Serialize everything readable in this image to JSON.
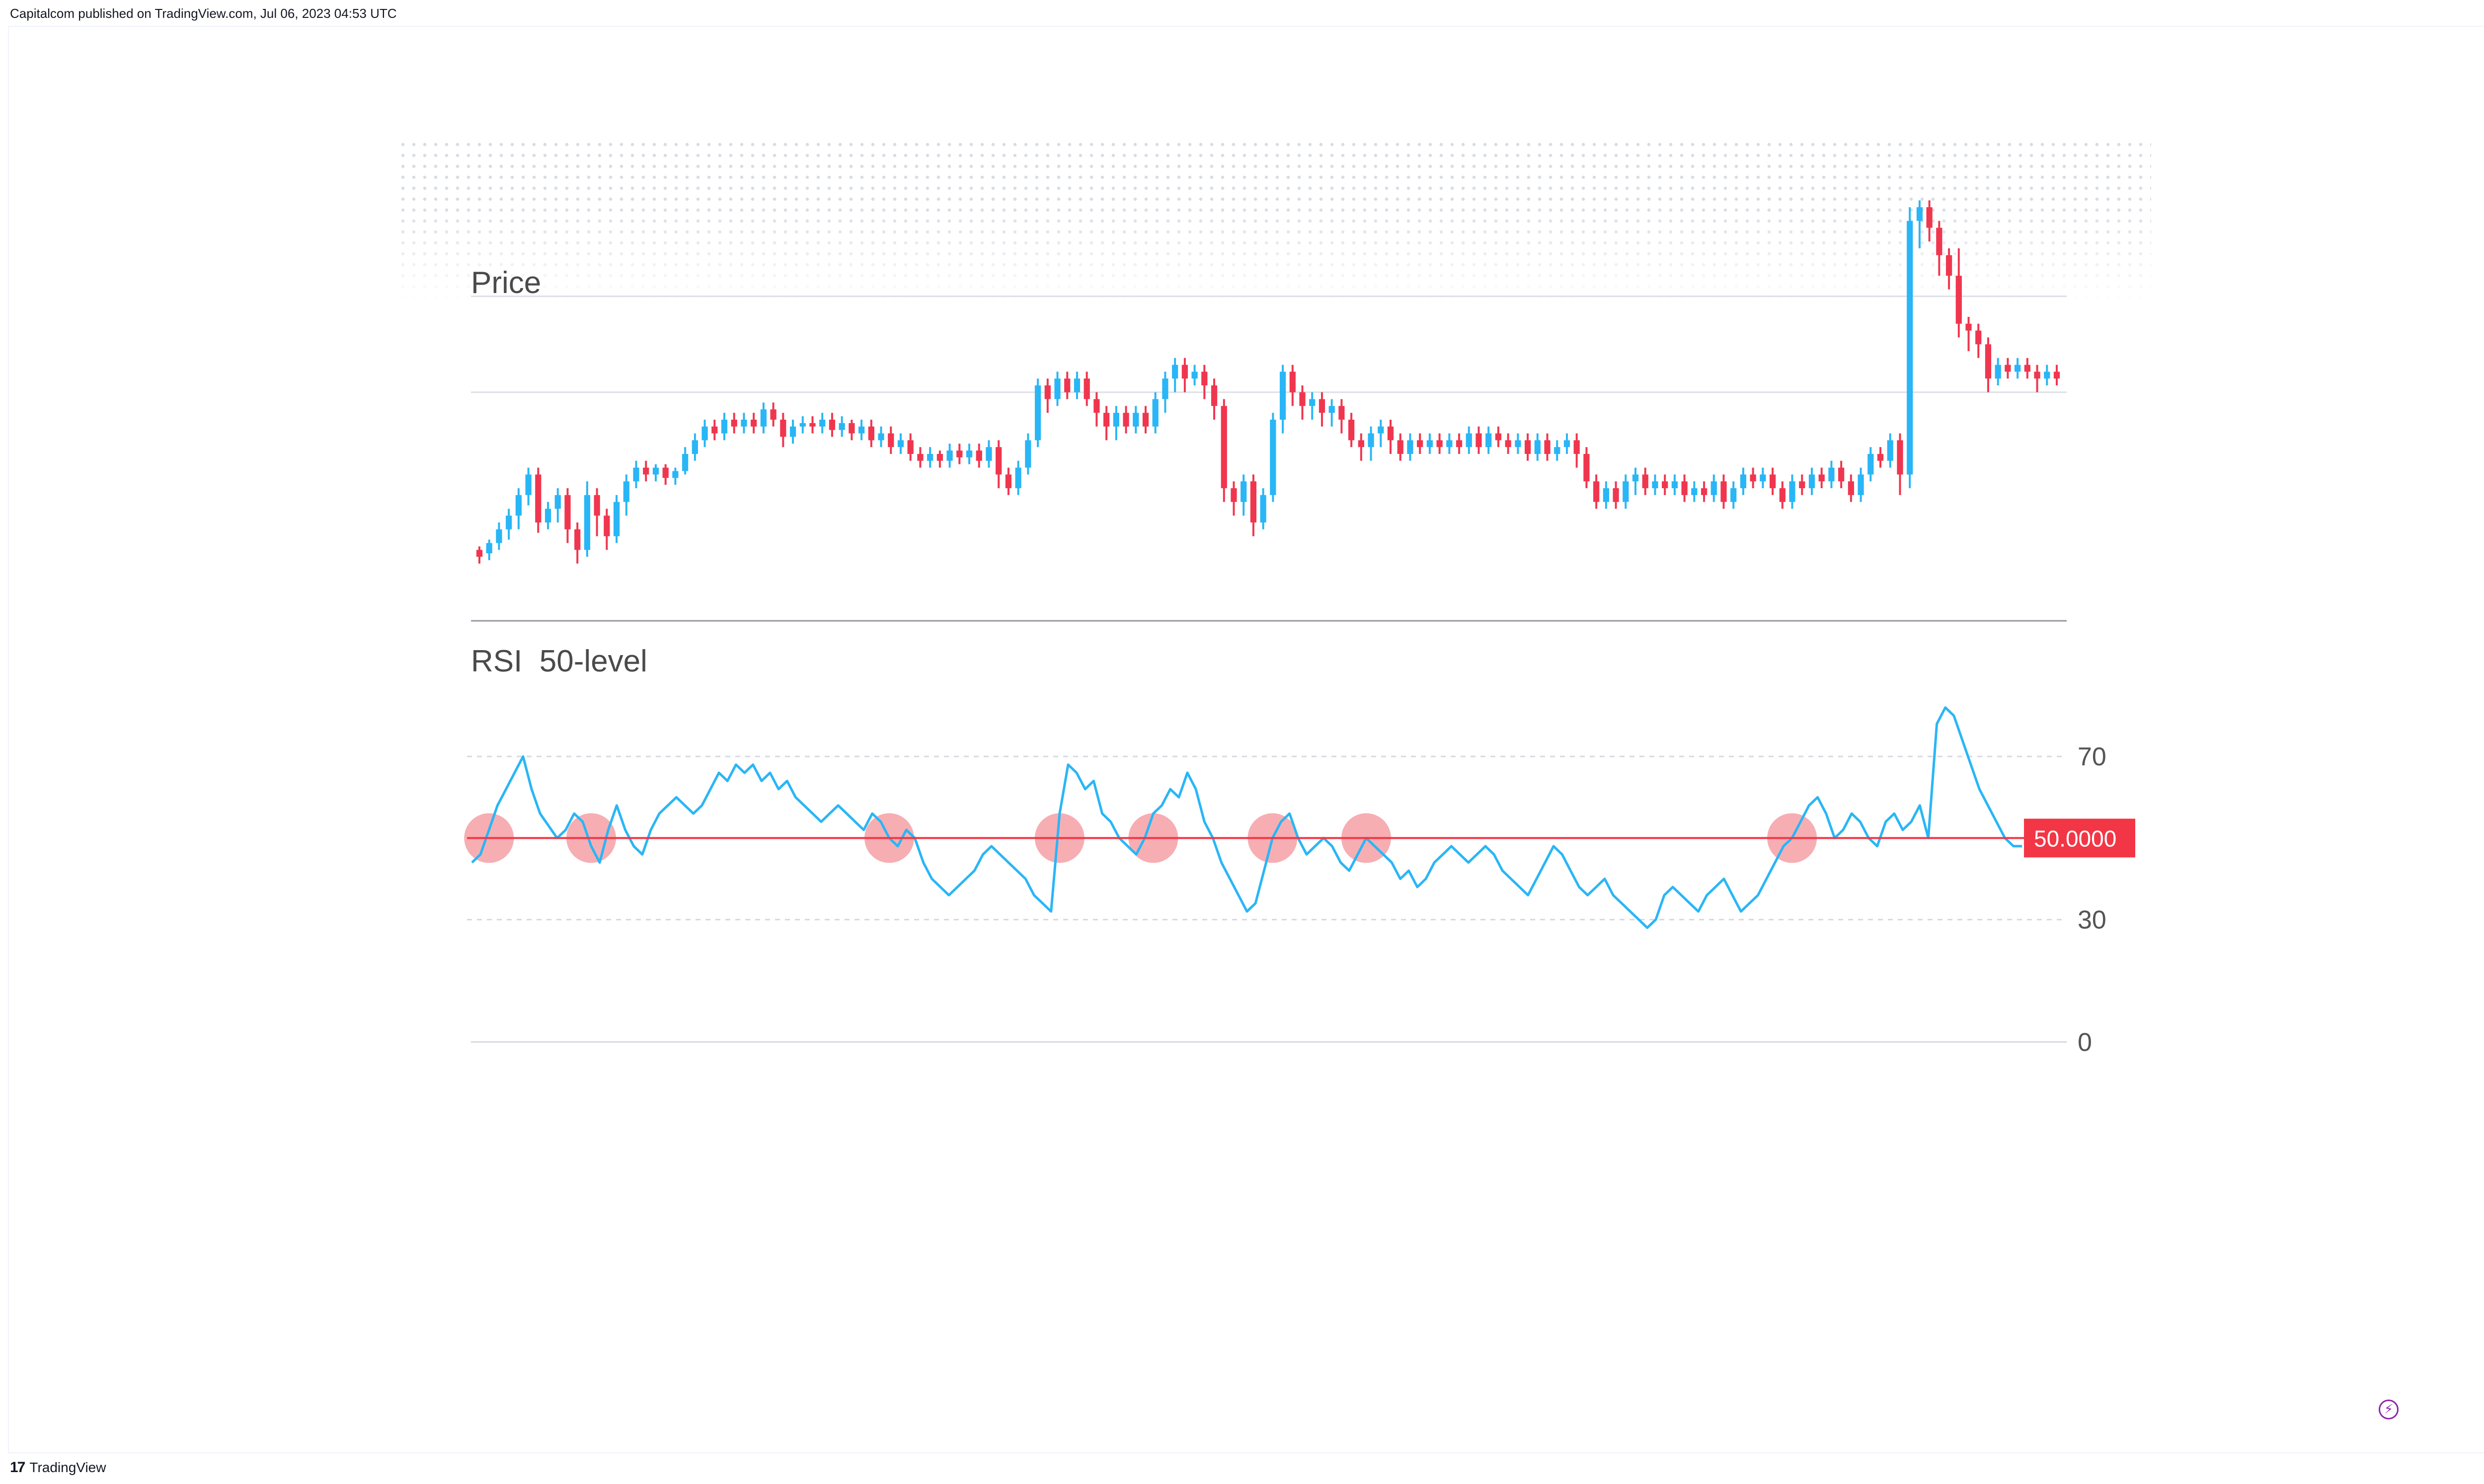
{
  "header": {
    "published": "Capitalcom published on TradingView.com, Jul 06, 2023 04:53 UTC"
  },
  "footer": {
    "brand_logo": "17",
    "brand_name": "TradingView",
    "bolt_glyph": "⚡"
  },
  "chart_data": [
    {
      "type": "candlestick",
      "title": "Price",
      "colors": {
        "up": "#29b6f6",
        "down": "#f0364f",
        "grid": "#dde0e6"
      },
      "ylim": [
        0,
        100
      ],
      "gridlines": [
        58,
        86
      ],
      "candles": [
        [
          12,
          10,
          13,
          8
        ],
        [
          11,
          14,
          15,
          9
        ],
        [
          14,
          18,
          20,
          12
        ],
        [
          18,
          22,
          24,
          15
        ],
        [
          22,
          28,
          30,
          18
        ],
        [
          28,
          34,
          36,
          25
        ],
        [
          34,
          20,
          36,
          17
        ],
        [
          20,
          24,
          26,
          18
        ],
        [
          24,
          28,
          30,
          20
        ],
        [
          28,
          18,
          30,
          14
        ],
        [
          18,
          12,
          20,
          8
        ],
        [
          12,
          28,
          32,
          10
        ],
        [
          28,
          22,
          30,
          16
        ],
        [
          22,
          16,
          24,
          12
        ],
        [
          16,
          26,
          28,
          14
        ],
        [
          26,
          32,
          34,
          22
        ],
        [
          32,
          36,
          38,
          30
        ],
        [
          36,
          34,
          38,
          32
        ],
        [
          34,
          36,
          37,
          32
        ],
        [
          36,
          33,
          37,
          31
        ],
        [
          33,
          35,
          36,
          31
        ],
        [
          35,
          40,
          42,
          34
        ],
        [
          40,
          44,
          46,
          38
        ],
        [
          44,
          48,
          50,
          42
        ],
        [
          48,
          46,
          50,
          44
        ],
        [
          46,
          50,
          52,
          44
        ],
        [
          50,
          48,
          52,
          46
        ],
        [
          48,
          50,
          52,
          46
        ],
        [
          50,
          48,
          52,
          46
        ],
        [
          48,
          53,
          55,
          46
        ],
        [
          53,
          50,
          55,
          48
        ],
        [
          50,
          45,
          52,
          42
        ],
        [
          45,
          48,
          50,
          43
        ],
        [
          48,
          49,
          51,
          46
        ],
        [
          49,
          48,
          51,
          46
        ],
        [
          48,
          50,
          52,
          46
        ],
        [
          50,
          47,
          52,
          45
        ],
        [
          47,
          49,
          51,
          45
        ],
        [
          49,
          46,
          50,
          44
        ],
        [
          46,
          48,
          50,
          44
        ],
        [
          48,
          44,
          50,
          42
        ],
        [
          44,
          46,
          48,
          42
        ],
        [
          46,
          42,
          48,
          40
        ],
        [
          42,
          44,
          46,
          40
        ],
        [
          44,
          40,
          46,
          38
        ],
        [
          40,
          38,
          42,
          36
        ],
        [
          38,
          40,
          42,
          36
        ],
        [
          40,
          38,
          41,
          36
        ],
        [
          38,
          41,
          43,
          36
        ],
        [
          41,
          39,
          43,
          37
        ],
        [
          39,
          41,
          43,
          37
        ],
        [
          41,
          38,
          43,
          36
        ],
        [
          38,
          42,
          44,
          36
        ],
        [
          42,
          34,
          44,
          30
        ],
        [
          34,
          30,
          36,
          28
        ],
        [
          30,
          36,
          38,
          28
        ],
        [
          36,
          44,
          46,
          34
        ],
        [
          44,
          60,
          62,
          42
        ],
        [
          60,
          56,
          62,
          52
        ],
        [
          56,
          62,
          64,
          54
        ],
        [
          62,
          58,
          64,
          56
        ],
        [
          58,
          62,
          64,
          56
        ],
        [
          62,
          56,
          64,
          54
        ],
        [
          56,
          52,
          58,
          48
        ],
        [
          52,
          48,
          54,
          44
        ],
        [
          48,
          52,
          54,
          44
        ],
        [
          52,
          48,
          54,
          46
        ],
        [
          48,
          52,
          54,
          46
        ],
        [
          52,
          48,
          54,
          46
        ],
        [
          48,
          56,
          58,
          46
        ],
        [
          56,
          62,
          64,
          52
        ],
        [
          62,
          66,
          68,
          58
        ],
        [
          66,
          62,
          68,
          58
        ],
        [
          62,
          64,
          66,
          60
        ],
        [
          64,
          60,
          66,
          56
        ],
        [
          60,
          54,
          62,
          50
        ],
        [
          54,
          30,
          56,
          26
        ],
        [
          30,
          26,
          32,
          22
        ],
        [
          26,
          32,
          34,
          22
        ],
        [
          32,
          20,
          34,
          16
        ],
        [
          20,
          28,
          30,
          18
        ],
        [
          28,
          50,
          52,
          26
        ],
        [
          50,
          64,
          66,
          46
        ],
        [
          64,
          58,
          66,
          54
        ],
        [
          58,
          54,
          60,
          50
        ],
        [
          54,
          56,
          58,
          50
        ],
        [
          56,
          52,
          58,
          48
        ],
        [
          52,
          54,
          56,
          48
        ],
        [
          54,
          50,
          56,
          46
        ],
        [
          50,
          44,
          52,
          42
        ],
        [
          44,
          42,
          46,
          38
        ],
        [
          42,
          46,
          48,
          38
        ],
        [
          46,
          48,
          50,
          42
        ],
        [
          48,
          44,
          50,
          40
        ],
        [
          44,
          40,
          46,
          38
        ],
        [
          40,
          44,
          46,
          38
        ],
        [
          44,
          42,
          46,
          40
        ],
        [
          42,
          44,
          46,
          40
        ],
        [
          44,
          42,
          46,
          40
        ],
        [
          42,
          44,
          46,
          40
        ],
        [
          44,
          42,
          46,
          40
        ],
        [
          42,
          46,
          48,
          40
        ],
        [
          46,
          42,
          48,
          40
        ],
        [
          42,
          46,
          48,
          40
        ],
        [
          46,
          44,
          48,
          42
        ],
        [
          44,
          42,
          46,
          40
        ],
        [
          42,
          44,
          46,
          40
        ],
        [
          44,
          40,
          46,
          38
        ],
        [
          40,
          44,
          46,
          38
        ],
        [
          44,
          40,
          46,
          38
        ],
        [
          40,
          42,
          44,
          38
        ],
        [
          42,
          44,
          46,
          40
        ],
        [
          44,
          40,
          46,
          36
        ],
        [
          40,
          32,
          42,
          30
        ],
        [
          32,
          26,
          34,
          24
        ],
        [
          26,
          30,
          32,
          24
        ],
        [
          30,
          26,
          32,
          24
        ],
        [
          26,
          32,
          34,
          24
        ],
        [
          32,
          34,
          36,
          28
        ],
        [
          34,
          30,
          36,
          28
        ],
        [
          30,
          32,
          34,
          28
        ],
        [
          32,
          30,
          34,
          28
        ],
        [
          30,
          32,
          34,
          28
        ],
        [
          32,
          28,
          34,
          26
        ],
        [
          28,
          30,
          32,
          26
        ],
        [
          30,
          28,
          32,
          26
        ],
        [
          28,
          32,
          34,
          26
        ],
        [
          32,
          26,
          34,
          24
        ],
        [
          26,
          30,
          32,
          24
        ],
        [
          30,
          34,
          36,
          28
        ],
        [
          34,
          32,
          36,
          30
        ],
        [
          32,
          34,
          36,
          30
        ],
        [
          34,
          30,
          36,
          28
        ],
        [
          30,
          26,
          32,
          24
        ],
        [
          26,
          32,
          34,
          24
        ],
        [
          32,
          30,
          34,
          28
        ],
        [
          30,
          34,
          36,
          28
        ],
        [
          34,
          32,
          36,
          30
        ],
        [
          32,
          36,
          38,
          30
        ],
        [
          36,
          32,
          38,
          30
        ],
        [
          32,
          28,
          34,
          26
        ],
        [
          28,
          34,
          36,
          26
        ],
        [
          34,
          40,
          42,
          32
        ],
        [
          40,
          38,
          42,
          36
        ],
        [
          38,
          44,
          46,
          36
        ],
        [
          44,
          34,
          46,
          28
        ],
        [
          34,
          108,
          112,
          30
        ],
        [
          108,
          112,
          114,
          100
        ],
        [
          112,
          106,
          114,
          102
        ],
        [
          106,
          98,
          108,
          92
        ],
        [
          98,
          92,
          100,
          88
        ],
        [
          92,
          78,
          100,
          74
        ],
        [
          78,
          76,
          80,
          70
        ],
        [
          76,
          72,
          78,
          68
        ],
        [
          72,
          62,
          74,
          58
        ],
        [
          62,
          66,
          68,
          60
        ],
        [
          66,
          64,
          68,
          62
        ],
        [
          64,
          66,
          68,
          62
        ],
        [
          66,
          64,
          68,
          62
        ],
        [
          64,
          62,
          66,
          58
        ],
        [
          62,
          64,
          66,
          60
        ],
        [
          64,
          62,
          66,
          60
        ]
      ]
    },
    {
      "type": "line",
      "title": "RSI  50-level",
      "colors": {
        "line": "#29b6f6",
        "level": "#f23645",
        "marker": "#f4a0a6"
      },
      "ylim": [
        0,
        85
      ],
      "yticks": [
        70,
        30,
        0
      ],
      "level": 50,
      "level_label": "50.0000",
      "values": [
        44,
        46,
        52,
        58,
        62,
        66,
        70,
        62,
        56,
        53,
        50,
        52,
        56,
        54,
        48,
        44,
        52,
        58,
        52,
        48,
        46,
        52,
        56,
        58,
        60,
        58,
        56,
        58,
        62,
        66,
        64,
        68,
        66,
        68,
        64,
        66,
        62,
        64,
        60,
        58,
        56,
        54,
        56,
        58,
        56,
        54,
        52,
        56,
        54,
        50,
        48,
        52,
        50,
        44,
        40,
        38,
        36,
        38,
        40,
        42,
        46,
        48,
        46,
        44,
        42,
        40,
        36,
        34,
        32,
        56,
        68,
        66,
        62,
        64,
        56,
        54,
        50,
        48,
        46,
        50,
        56,
        58,
        62,
        60,
        66,
        62,
        54,
        50,
        44,
        40,
        36,
        32,
        34,
        42,
        50,
        54,
        56,
        50,
        46,
        48,
        50,
        48,
        44,
        42,
        46,
        50,
        48,
        46,
        44,
        40,
        42,
        38,
        40,
        44,
        46,
        48,
        46,
        44,
        46,
        48,
        46,
        42,
        40,
        38,
        36,
        40,
        44,
        48,
        46,
        42,
        38,
        36,
        38,
        40,
        36,
        34,
        32,
        30,
        28,
        30,
        36,
        38,
        36,
        34,
        32,
        36,
        38,
        40,
        36,
        32,
        34,
        36,
        40,
        44,
        48,
        50,
        54,
        58,
        60,
        56,
        50,
        52,
        56,
        54,
        50,
        48,
        54,
        56,
        52,
        54,
        58,
        50,
        78,
        82,
        80,
        74,
        68,
        62,
        58,
        54,
        50,
        48,
        48
      ]
    }
  ]
}
